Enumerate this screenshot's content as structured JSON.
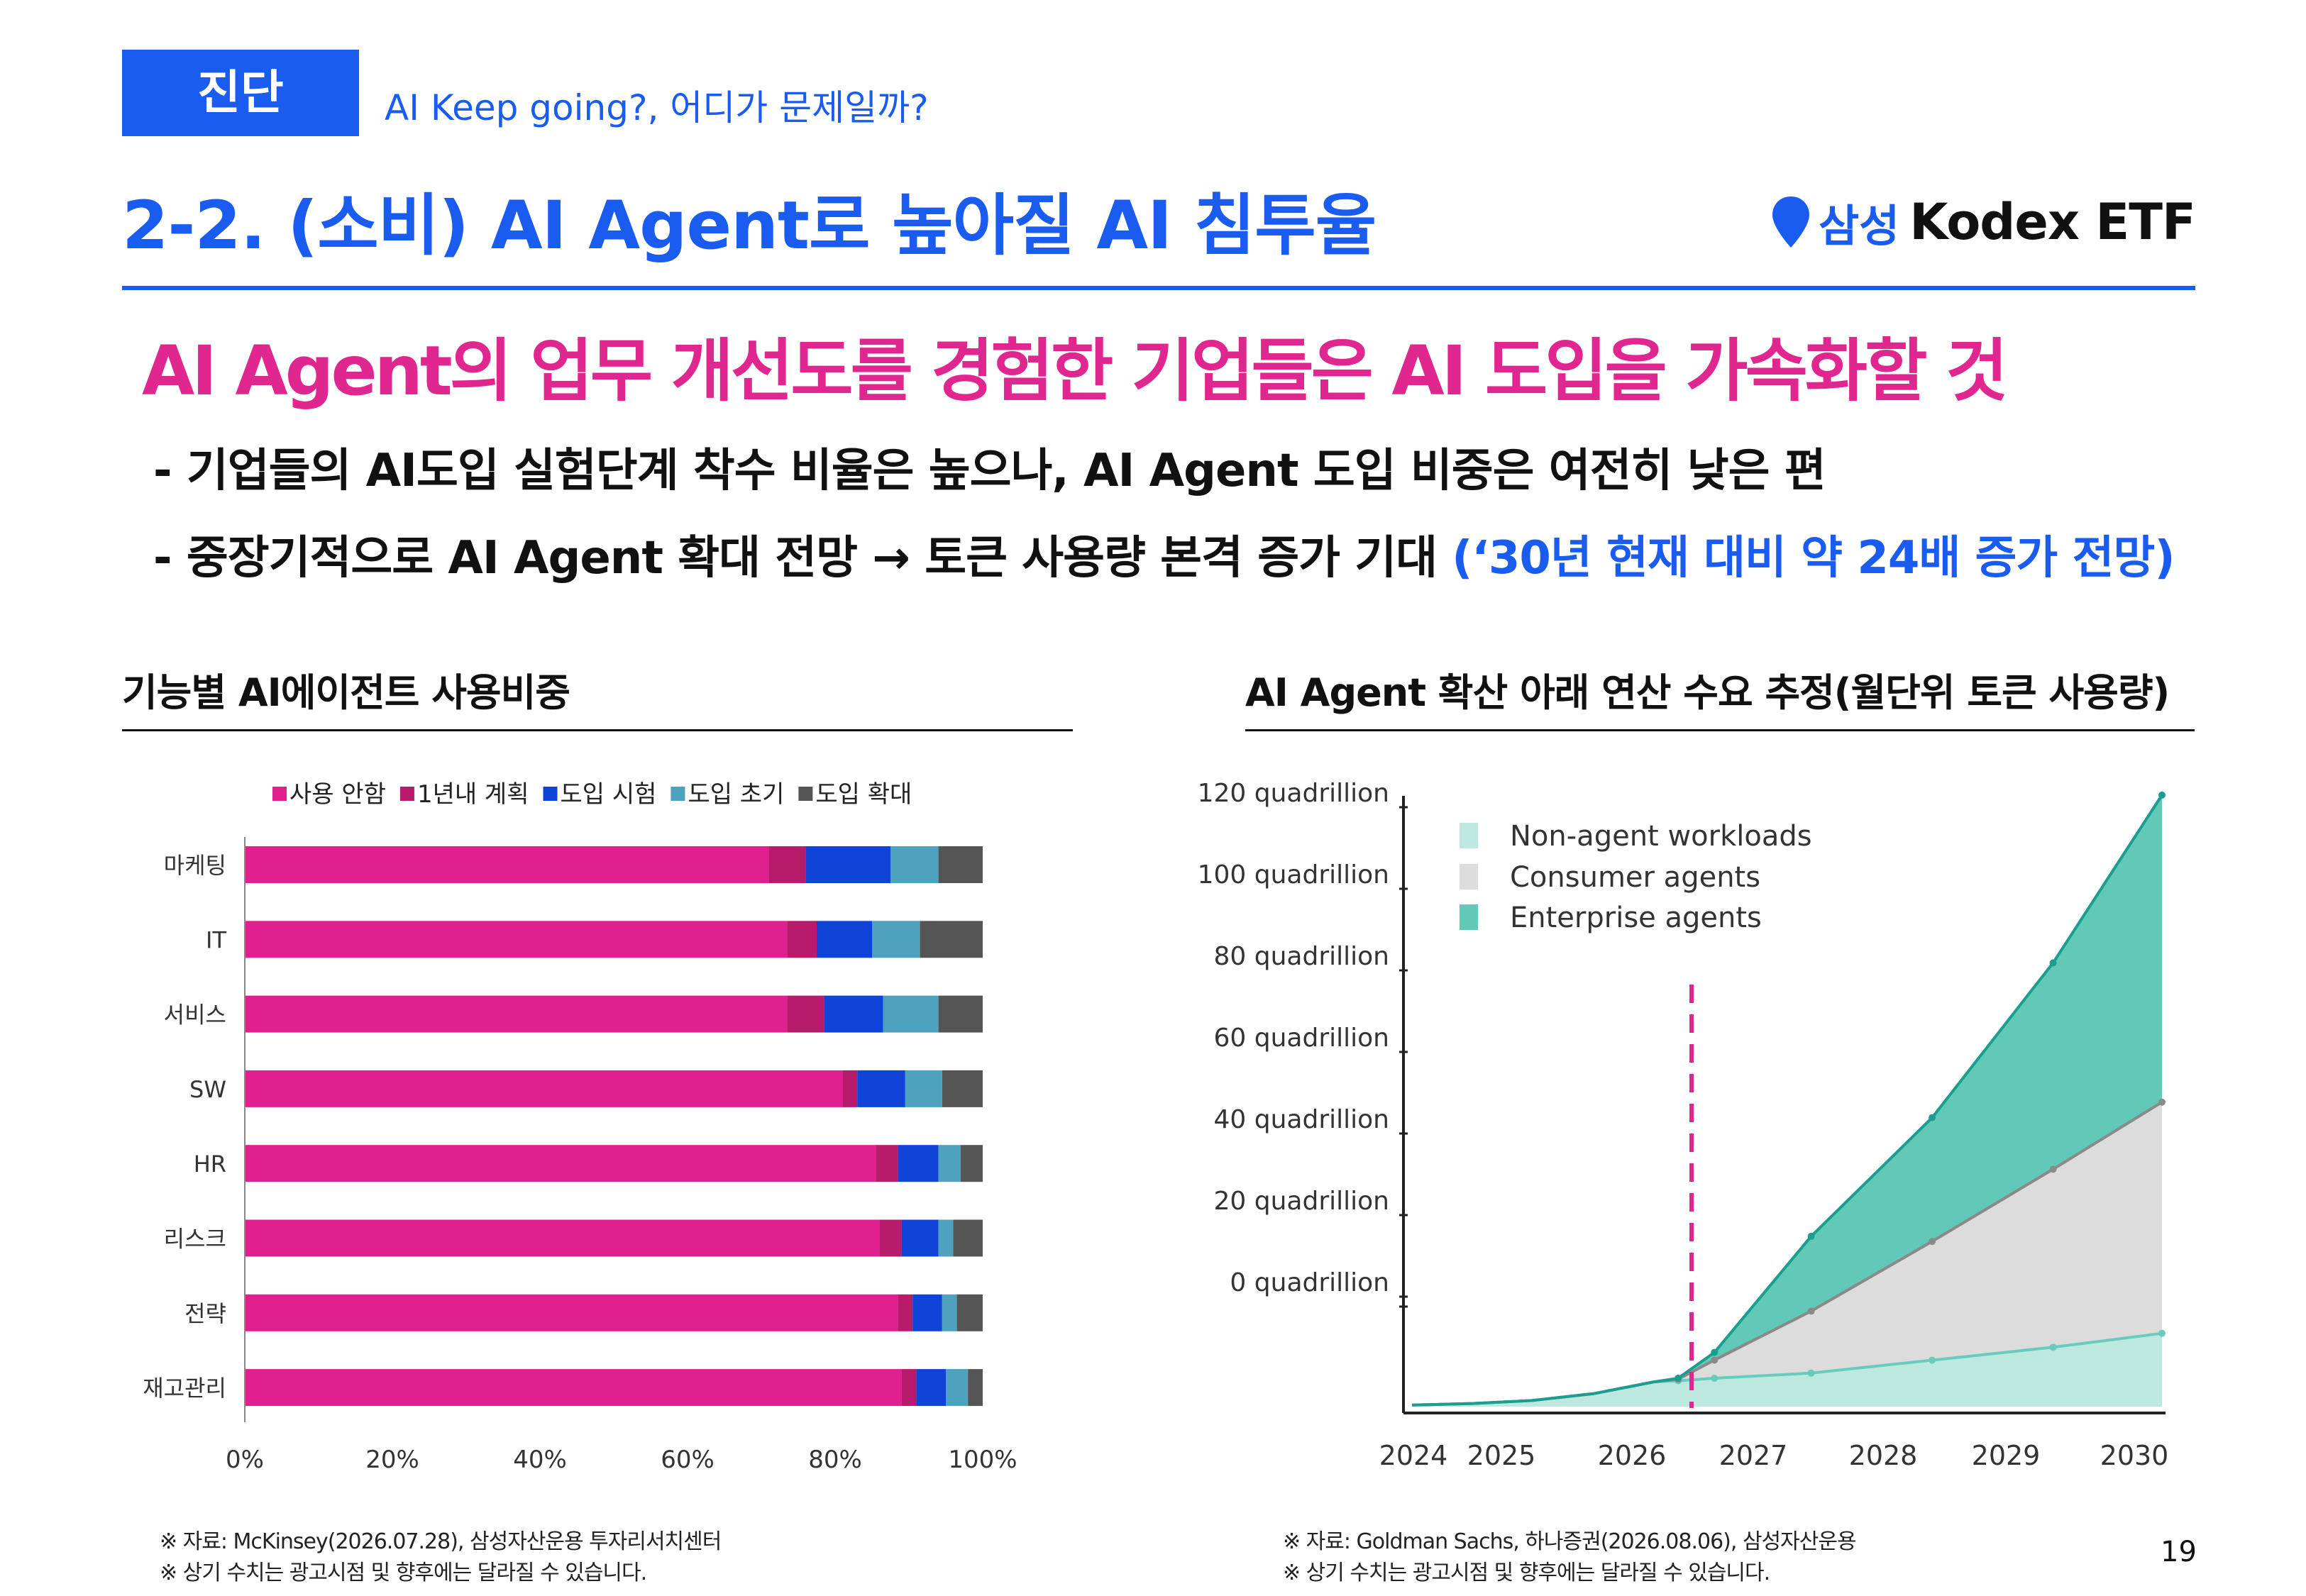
{
  "header": {
    "tag": "진단",
    "subtitle": "AI Keep going?, 어디가 문제일까?",
    "title": "2-2. (소비) AI Agent로 높아질 AI 침투율",
    "brand_prefix": "삼성",
    "brand_name": "Kodex ETF",
    "colors": {
      "accent": "#1a5cf0",
      "highlight": "#e0268f"
    }
  },
  "headline": "AI Agent의 업무 개선도를 경험한 기업들은 AI 도입을 가속화할 것",
  "bullets": {
    "b1": "- 기업들의 AI도입 실험단계 착수 비율은 높으나, AI Agent 도입 비중은 여전히 낮은 편",
    "b2_main": "- 중장기적으로 AI Agent 확대 전망 → 토큰 사용량 본격 증가 기대 ",
    "b2_highlight": "(‘30년 현재 대비 약 24배 증가 전망)"
  },
  "left_section": {
    "title": "기능별 AI에이전트 사용비중",
    "notes": [
      "※ 자료: McKinsey(2026.07.28), 삼성자산운용 투자리서치센터",
      "※ 상기 수치는 광고시점 및 향후에는 달라질 수 있습니다."
    ]
  },
  "right_section": {
    "title": "AI Agent  확산 아래 연산 수요 추정(월단위 토큰 사용량)",
    "notes": [
      "※ 자료: Goldman Sachs, 하나증권(2026.08.06), 삼성자산운용",
      "※ 상기 수치는 광고시점 및 향후에는 달라질 수 있습니다."
    ]
  },
  "page_number": "19",
  "chart_data": [
    {
      "type": "bar",
      "orientation": "horizontal",
      "stacked": true,
      "categories": [
        "마케팅",
        "IT",
        "서비스",
        "SW",
        "HR",
        "리스크",
        "전략",
        "재고관리"
      ],
      "series": [
        {
          "name": "사용 안함",
          "color": "#e0208e",
          "values": [
            71,
            73.5,
            73.5,
            81,
            85.5,
            86,
            88.5,
            89
          ]
        },
        {
          "name": "1년내 계획",
          "color": "#b81a6c",
          "values": [
            5,
            4,
            5,
            2,
            3,
            3,
            2,
            2
          ]
        },
        {
          "name": "도입 시험",
          "color": "#1044d8",
          "values": [
            11.5,
            7.5,
            8,
            6.5,
            5.5,
            5,
            4,
            4
          ]
        },
        {
          "name": "도입 초기",
          "color": "#4fa2bd",
          "values": [
            6.5,
            6.5,
            7.5,
            5,
            3,
            2,
            2,
            3
          ]
        },
        {
          "name": "도입 확대",
          "color": "#555555",
          "values": [
            6,
            8.5,
            6,
            5.5,
            3,
            4,
            3.5,
            2
          ]
        }
      ],
      "x_ticks": [
        "0%",
        "20%",
        "40%",
        "60%",
        "80%",
        "100%"
      ],
      "xlim": [
        0,
        100
      ],
      "legend": "top"
    },
    {
      "type": "area",
      "stacked": true,
      "x_ticks": [
        "2024",
        "2025",
        "2026",
        "2027",
        "2028",
        "2029",
        "2030"
      ],
      "y_ticks": [
        "120 quadrillion",
        "100 quadrillion",
        "80 quadrillion",
        "60 quadrillion",
        "40 quadrillion",
        "20 quadrillion",
        "0 quadrillion"
      ],
      "x": [
        2024.0,
        2024.5,
        2025.0,
        2025.5,
        2026.0,
        2026.2,
        2026.5,
        2027.3,
        2028.3,
        2029.3,
        2030.2
      ],
      "series": [
        {
          "name": "Non-agent workloads",
          "color": "#bde8df",
          "line_color": "#69cbbd",
          "values": [
            0.3,
            0.6,
            1.2,
            2.5,
            4.8,
            5.0,
            5.5,
            6.5,
            9.0,
            11.5,
            14.2
          ]
        },
        {
          "name": "Consumer agents",
          "color": "#dcdcdc",
          "line_color": "#8a8a8a",
          "values": [
            0,
            0,
            0,
            0,
            0,
            0.3,
            3.5,
            12,
            23,
            34.5,
            44.8
          ]
        },
        {
          "name": "Enterprise agents",
          "color": "#62c8b8",
          "line_color": "#1b9e8f",
          "values": [
            0,
            0,
            0,
            0,
            0,
            0.2,
            1.5,
            14.5,
            24,
            40,
            59.5
          ]
        }
      ],
      "annotation": {
        "type": "vertical-dashed-line",
        "x": 2026.5,
        "color": "#e0268f"
      },
      "legend": "top-left"
    }
  ]
}
